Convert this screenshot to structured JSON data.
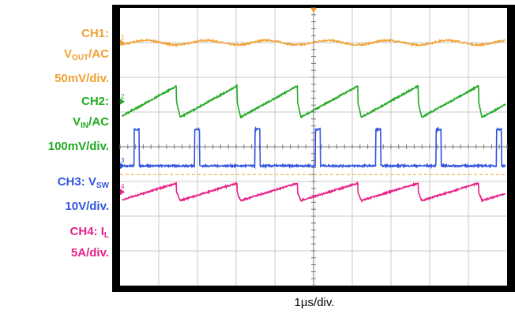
{
  "chart_data": {
    "type": "line",
    "title": "",
    "xlabel": "1µs/div.",
    "ylabel": "",
    "grid": true,
    "divisions": {
      "x": 10,
      "y": 8
    },
    "channels": [
      {
        "id": "CH1",
        "label": "CH1:",
        "quantity_main": "V",
        "quantity_sub": "OUT",
        "quantity_suffix": "/AC",
        "scale": "50mV/div.",
        "color": "#f0a030",
        "marker": "1",
        "baseline_div": 1.0,
        "waveform": "ripple",
        "period_div": 1.56,
        "amplitude_div": 0.13
      },
      {
        "id": "CH2",
        "label": "CH2:",
        "quantity_main": "V",
        "quantity_sub": "IN",
        "quantity_suffix": "/AC",
        "scale": "100mV/div.",
        "color": "#22aa22",
        "marker": "2",
        "baseline_div": 2.7,
        "waveform": "sawtooth",
        "period_div": 1.56,
        "amplitude_div": 0.45
      },
      {
        "id": "CH3",
        "label": "CH3: V",
        "quantity_sub": "SW",
        "scale": "10V/div.",
        "color": "#3355dd",
        "marker": "3",
        "baseline_div": 4.55,
        "waveform": "pulse",
        "period_div": 1.56,
        "high_div": 1.05,
        "pulse_width_div": 0.13
      },
      {
        "id": "CH4",
        "label": "CH4: I",
        "quantity_sub": "L",
        "scale": "5A/div.",
        "color": "#e8208a",
        "marker": "4",
        "baseline_div": 5.3,
        "waveform": "sawtooth",
        "period_div": 1.56,
        "amplitude_div": 0.25
      }
    ],
    "trigger_color": "#f0a030"
  }
}
